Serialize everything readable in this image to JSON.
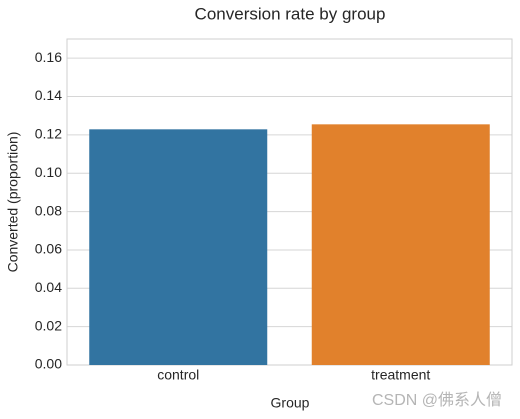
{
  "chart_data": {
    "type": "bar",
    "title": "Conversion rate by group",
    "x_label": "Group",
    "y_label": "Converted (proportion)",
    "categories": [
      "control",
      "treatment"
    ],
    "values": [
      0.1229,
      0.1255
    ],
    "colors": [
      "#3274a1",
      "#e1812c"
    ],
    "ylim": [
      0,
      0.17
    ],
    "yticks": [
      {
        "value": 0,
        "label": "0.00"
      },
      {
        "value": 0.02,
        "label": "0.02"
      },
      {
        "value": 0.04,
        "label": "0.04"
      },
      {
        "value": 0.06,
        "label": "0.06"
      },
      {
        "value": 0.08,
        "label": "0.08"
      },
      {
        "value": 0.1,
        "label": "0.10"
      },
      {
        "value": 0.12,
        "label": "0.12"
      },
      {
        "value": 0.14,
        "label": "0.14"
      },
      {
        "value": 0.16,
        "label": "0.16"
      }
    ],
    "grid": true
  },
  "watermark": "CSDN @佛系人僧"
}
